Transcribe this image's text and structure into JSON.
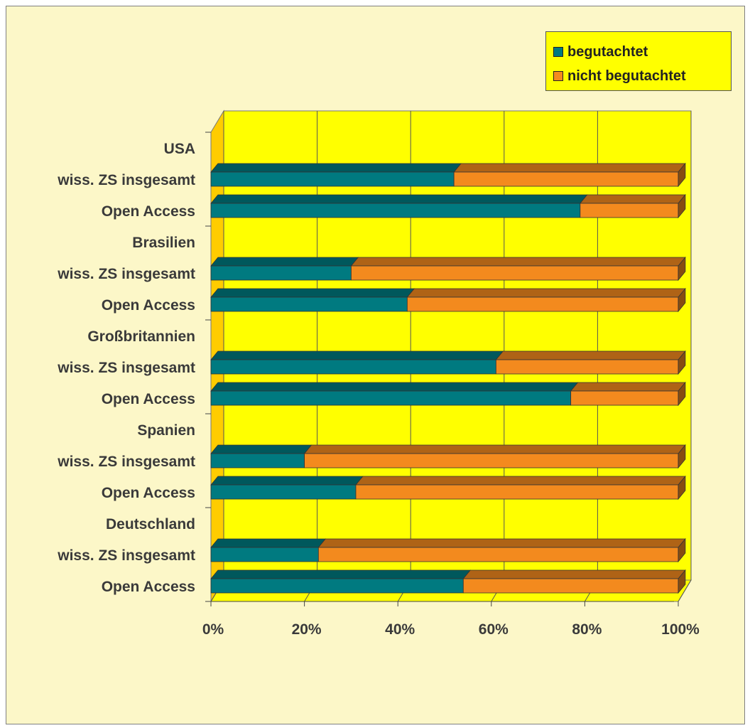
{
  "chart_data": {
    "type": "bar",
    "stacked": "percent",
    "orientation": "horizontal",
    "three_d": true,
    "categories": [
      "USA",
      "wiss. ZS insgesamt",
      "Open Access",
      "Brasilien",
      "wiss. ZS insgesamt",
      "Open Access",
      "Großbritannien",
      "wiss. ZS insgesamt",
      "Open Access",
      "Spanien",
      "wiss. ZS insgesamt",
      "Open Access",
      "Deutschland",
      "wiss. ZS insgesamt",
      "Open Access"
    ],
    "series": [
      {
        "name": "begutachtet",
        "color": "#007a80",
        "values": [
          null,
          52,
          79,
          null,
          30,
          42,
          null,
          61,
          77,
          null,
          20,
          31,
          null,
          23,
          54
        ]
      },
      {
        "name": "nicht begutachtet",
        "color": "#f38a1e",
        "values": [
          null,
          48,
          21,
          null,
          70,
          58,
          null,
          39,
          23,
          null,
          80,
          69,
          null,
          77,
          46
        ]
      }
    ],
    "xlim": [
      0,
      100
    ],
    "x_ticks": [
      "0%",
      "20%",
      "40%",
      "60%",
      "80%",
      "100%"
    ],
    "grid": true,
    "legend_position": "top-right",
    "colors": {
      "plot_background": "#ffff00",
      "plot_floor": "#ffff00",
      "plot_wall": "#ffcc00",
      "page_background": "#fcf7c8"
    }
  }
}
